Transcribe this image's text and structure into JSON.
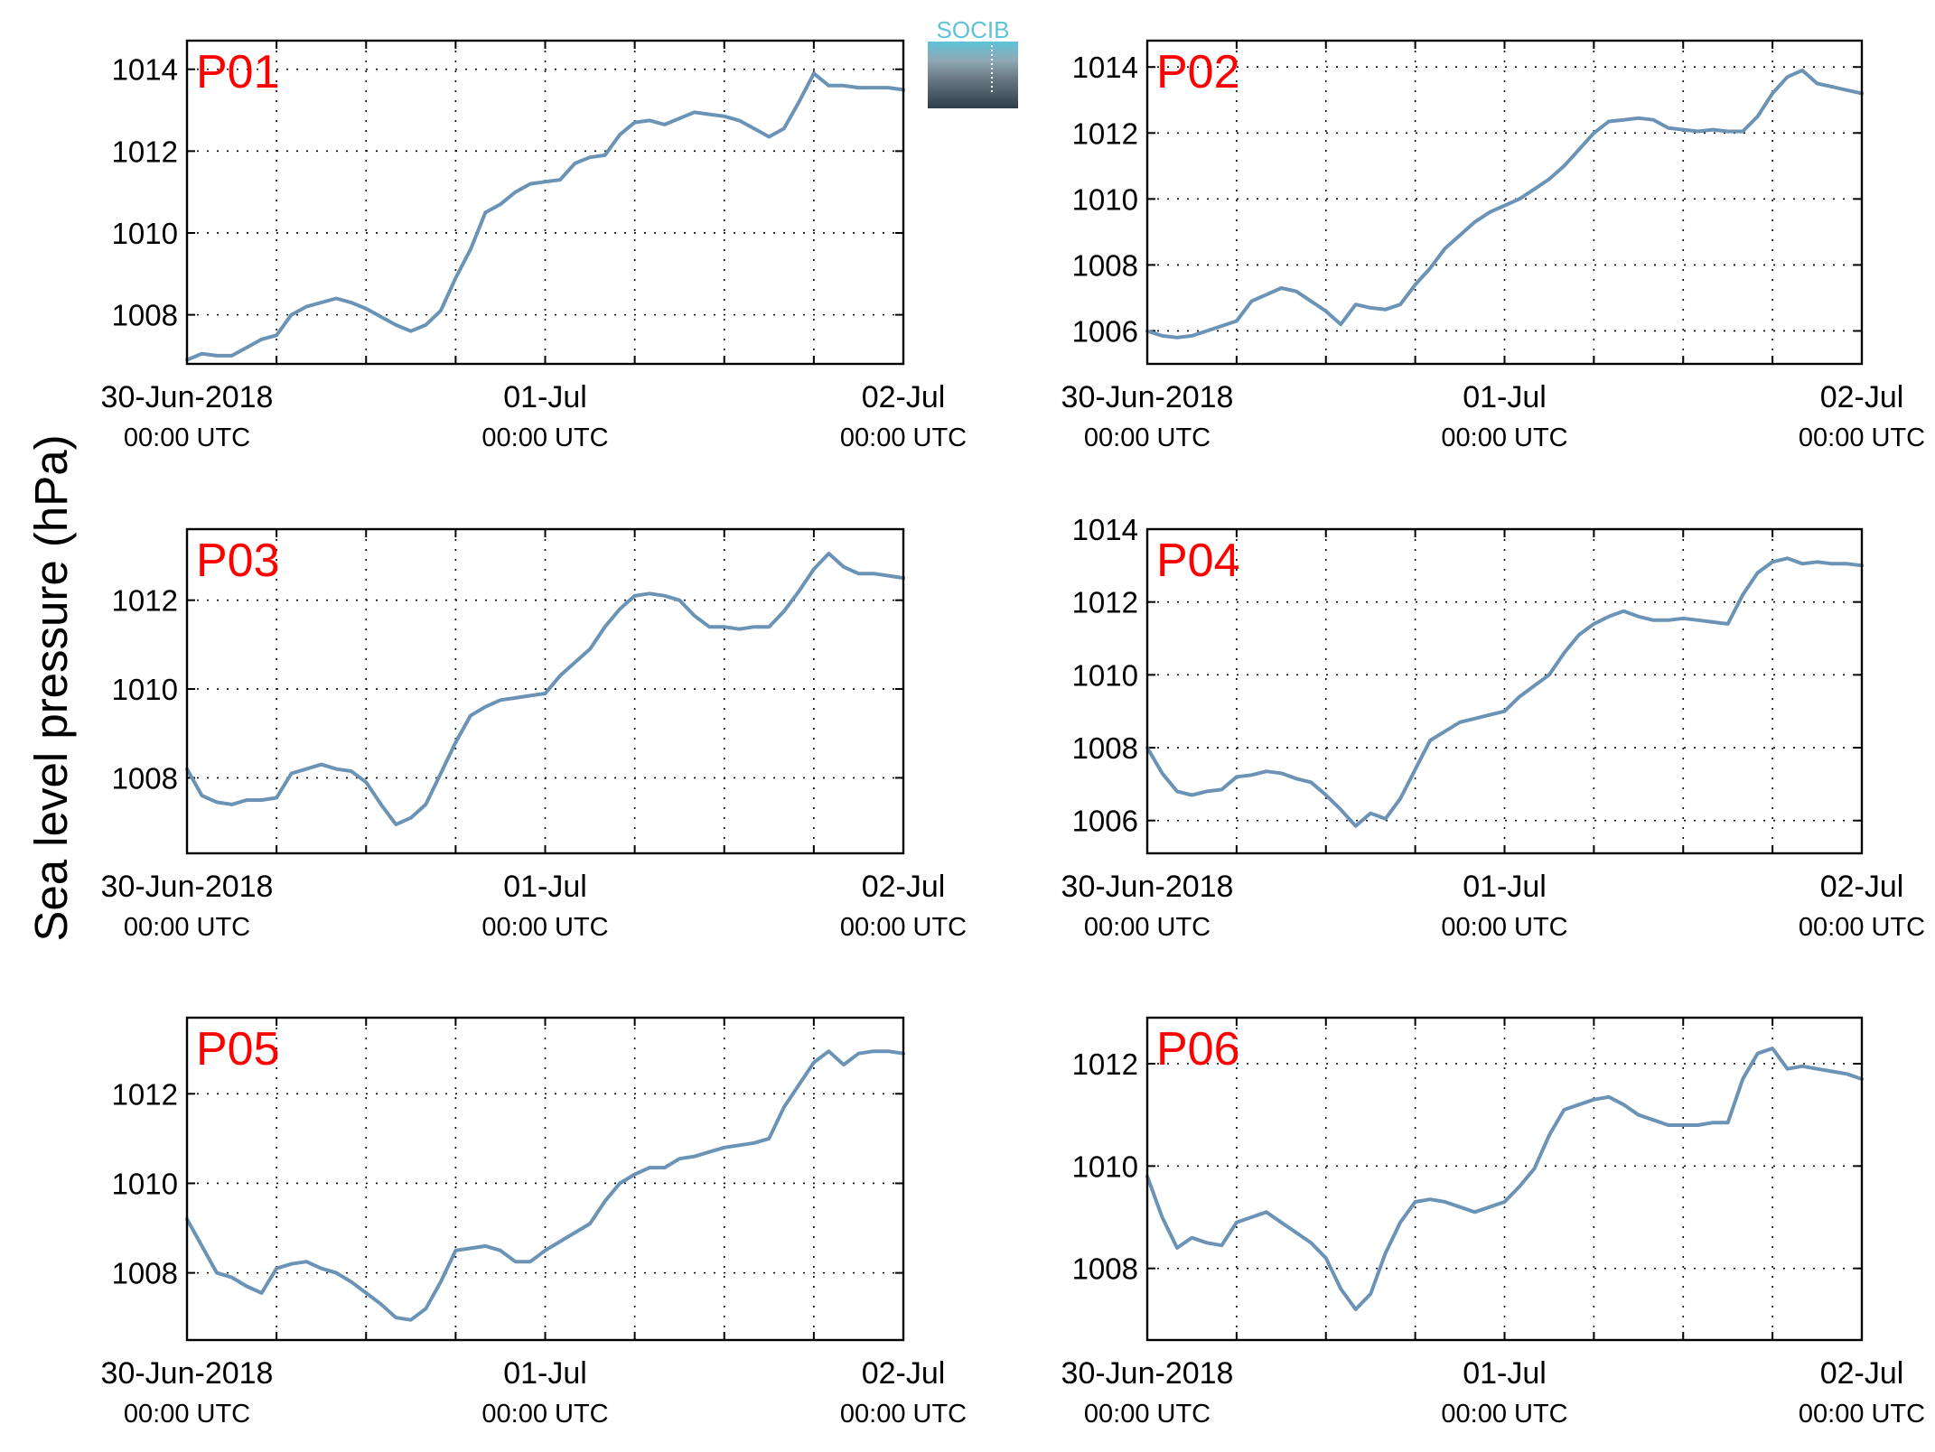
{
  "figure": {
    "ylabel": "Sea level pressure (hPa)",
    "logo_text": "SOCIB",
    "line_color": "#6b93b6",
    "label_color": "#ff0000"
  },
  "chart_data": [
    {
      "type": "line",
      "title": "P01",
      "x_ticks": [
        [
          "30-Jun-2018",
          "00:00 UTC"
        ],
        [
          "01-Jul",
          "00:00 UTC"
        ],
        [
          "02-Jul",
          "00:00 UTC"
        ]
      ],
      "x_range_hours": [
        0,
        48
      ],
      "x_grid_every_hours": 6,
      "ylim": [
        1006.8,
        1014.7
      ],
      "y_ticks": [
        1008,
        1010,
        1012,
        1014
      ],
      "hours": [
        0,
        1,
        2,
        3,
        4,
        5,
        6,
        7,
        8,
        9,
        10,
        11,
        12,
        13,
        14,
        15,
        16,
        17,
        18,
        19,
        20,
        21,
        22,
        23,
        24,
        25,
        26,
        27,
        28,
        29,
        30,
        31,
        32,
        33,
        34,
        35,
        36,
        37,
        38,
        39,
        40,
        41,
        42,
        43,
        44,
        45,
        46,
        47,
        48
      ],
      "values": [
        1006.9,
        1007.05,
        1007.0,
        1007.0,
        1007.2,
        1007.4,
        1007.5,
        1008.0,
        1008.2,
        1008.3,
        1008.4,
        1008.3,
        1008.15,
        1007.95,
        1007.75,
        1007.6,
        1007.75,
        1008.1,
        1008.9,
        1009.6,
        1010.5,
        1010.7,
        1011.0,
        1011.2,
        1011.25,
        1011.3,
        1011.7,
        1011.85,
        1011.9,
        1012.4,
        1012.7,
        1012.75,
        1012.65,
        1012.8,
        1012.95,
        1012.9,
        1012.85,
        1012.75,
        1012.55,
        1012.35,
        1012.55,
        1013.2,
        1013.9,
        1013.6,
        1013.6,
        1013.55,
        1013.55,
        1013.55,
        1013.5
      ]
    },
    {
      "type": "line",
      "title": "P02",
      "x_ticks": [
        [
          "30-Jun-2018",
          "00:00 UTC"
        ],
        [
          "01-Jul",
          "00:00 UTC"
        ],
        [
          "02-Jul",
          "00:00 UTC"
        ]
      ],
      "x_range_hours": [
        0,
        48
      ],
      "x_grid_every_hours": 6,
      "ylim": [
        1005.0,
        1014.8
      ],
      "y_ticks": [
        1006,
        1008,
        1010,
        1012,
        1014
      ],
      "hours": [
        0,
        1,
        2,
        3,
        4,
        5,
        6,
        7,
        8,
        9,
        10,
        11,
        12,
        13,
        14,
        15,
        16,
        17,
        18,
        19,
        20,
        21,
        22,
        23,
        24,
        25,
        26,
        27,
        28,
        29,
        30,
        31,
        32,
        33,
        34,
        35,
        36,
        37,
        38,
        39,
        40,
        41,
        42,
        43,
        44,
        45,
        46,
        47,
        48
      ],
      "values": [
        1006.0,
        1005.85,
        1005.8,
        1005.85,
        1006.0,
        1006.15,
        1006.3,
        1006.9,
        1007.1,
        1007.3,
        1007.2,
        1006.9,
        1006.6,
        1006.2,
        1006.8,
        1006.7,
        1006.65,
        1006.8,
        1007.4,
        1007.9,
        1008.5,
        1008.9,
        1009.3,
        1009.6,
        1009.8,
        1010.0,
        1010.3,
        1010.6,
        1011.0,
        1011.5,
        1012.0,
        1012.35,
        1012.4,
        1012.45,
        1012.4,
        1012.15,
        1012.1,
        1012.05,
        1012.1,
        1012.05,
        1012.05,
        1012.5,
        1013.2,
        1013.7,
        1013.9,
        1013.5,
        1013.4,
        1013.3,
        1013.2
      ]
    },
    {
      "type": "line",
      "title": "P03",
      "x_ticks": [
        [
          "30-Jun-2018",
          "00:00 UTC"
        ],
        [
          "01-Jul",
          "00:00 UTC"
        ],
        [
          "02-Jul",
          "00:00 UTC"
        ]
      ],
      "x_range_hours": [
        0,
        48
      ],
      "x_grid_every_hours": 6,
      "ylim": [
        1006.3,
        1013.6
      ],
      "y_ticks": [
        1008,
        1010,
        1012
      ],
      "hours": [
        0,
        1,
        2,
        3,
        4,
        5,
        6,
        7,
        8,
        9,
        10,
        11,
        12,
        13,
        14,
        15,
        16,
        17,
        18,
        19,
        20,
        21,
        22,
        23,
        24,
        25,
        26,
        27,
        28,
        29,
        30,
        31,
        32,
        33,
        34,
        35,
        36,
        37,
        38,
        39,
        40,
        41,
        42,
        43,
        44,
        45,
        46,
        47,
        48
      ],
      "values": [
        1008.2,
        1007.6,
        1007.45,
        1007.4,
        1007.5,
        1007.5,
        1007.55,
        1008.1,
        1008.2,
        1008.3,
        1008.2,
        1008.15,
        1007.9,
        1007.4,
        1006.95,
        1007.1,
        1007.4,
        1008.1,
        1008.8,
        1009.4,
        1009.6,
        1009.75,
        1009.8,
        1009.85,
        1009.9,
        1010.3,
        1010.6,
        1010.9,
        1011.4,
        1011.8,
        1012.1,
        1012.15,
        1012.1,
        1012.0,
        1011.65,
        1011.4,
        1011.4,
        1011.35,
        1011.4,
        1011.4,
        1011.75,
        1012.2,
        1012.7,
        1013.05,
        1012.75,
        1012.6,
        1012.6,
        1012.55,
        1012.5
      ]
    },
    {
      "type": "line",
      "title": "P04",
      "x_ticks": [
        [
          "30-Jun-2018",
          "00:00 UTC"
        ],
        [
          "01-Jul",
          "00:00 UTC"
        ],
        [
          "02-Jul",
          "00:00 UTC"
        ]
      ],
      "x_range_hours": [
        0,
        48
      ],
      "x_grid_every_hours": 6,
      "ylim": [
        1005.1,
        1014.0
      ],
      "y_ticks": [
        1006,
        1008,
        1010,
        1012,
        1014
      ],
      "hours": [
        0,
        1,
        2,
        3,
        4,
        5,
        6,
        7,
        8,
        9,
        10,
        11,
        12,
        13,
        14,
        15,
        16,
        17,
        18,
        19,
        20,
        21,
        22,
        23,
        24,
        25,
        26,
        27,
        28,
        29,
        30,
        31,
        32,
        33,
        34,
        35,
        36,
        37,
        38,
        39,
        40,
        41,
        42,
        43,
        44,
        45,
        46,
        47,
        48
      ],
      "values": [
        1008.0,
        1007.3,
        1006.8,
        1006.7,
        1006.8,
        1006.85,
        1007.2,
        1007.25,
        1007.35,
        1007.3,
        1007.15,
        1007.05,
        1006.7,
        1006.3,
        1005.85,
        1006.2,
        1006.05,
        1006.6,
        1007.4,
        1008.2,
        1008.45,
        1008.7,
        1008.8,
        1008.9,
        1009.0,
        1009.4,
        1009.7,
        1010.0,
        1010.6,
        1011.1,
        1011.4,
        1011.6,
        1011.75,
        1011.6,
        1011.5,
        1011.5,
        1011.55,
        1011.5,
        1011.45,
        1011.4,
        1012.2,
        1012.8,
        1013.1,
        1013.2,
        1013.05,
        1013.1,
        1013.05,
        1013.05,
        1013.0
      ]
    },
    {
      "type": "line",
      "title": "P05",
      "x_ticks": [
        [
          "30-Jun-2018",
          "00:00 UTC"
        ],
        [
          "01-Jul",
          "00:00 UTC"
        ],
        [
          "02-Jul",
          "00:00 UTC"
        ]
      ],
      "x_range_hours": [
        0,
        48
      ],
      "x_grid_every_hours": 6,
      "ylim": [
        1006.5,
        1013.7
      ],
      "y_ticks": [
        1008,
        1010,
        1012
      ],
      "hours": [
        0,
        1,
        2,
        3,
        4,
        5,
        6,
        7,
        8,
        9,
        10,
        11,
        12,
        13,
        14,
        15,
        16,
        17,
        18,
        19,
        20,
        21,
        22,
        23,
        24,
        25,
        26,
        27,
        28,
        29,
        30,
        31,
        32,
        33,
        34,
        35,
        36,
        37,
        38,
        39,
        40,
        41,
        42,
        43,
        44,
        45,
        46,
        47,
        48
      ],
      "values": [
        1009.2,
        1008.6,
        1008.0,
        1007.9,
        1007.7,
        1007.55,
        1008.1,
        1008.2,
        1008.25,
        1008.1,
        1008.0,
        1007.8,
        1007.55,
        1007.3,
        1007.0,
        1006.95,
        1007.2,
        1007.8,
        1008.5,
        1008.55,
        1008.6,
        1008.5,
        1008.25,
        1008.25,
        1008.5,
        1008.7,
        1008.9,
        1009.1,
        1009.6,
        1010.0,
        1010.2,
        1010.35,
        1010.35,
        1010.55,
        1010.6,
        1010.7,
        1010.8,
        1010.85,
        1010.9,
        1011.0,
        1011.7,
        1012.2,
        1012.7,
        1012.95,
        1012.65,
        1012.9,
        1012.95,
        1012.95,
        1012.9
      ]
    },
    {
      "type": "line",
      "title": "P06",
      "x_ticks": [
        [
          "30-Jun-2018",
          "00:00 UTC"
        ],
        [
          "01-Jul",
          "00:00 UTC"
        ],
        [
          "02-Jul",
          "00:00 UTC"
        ]
      ],
      "x_range_hours": [
        0,
        48
      ],
      "x_grid_every_hours": 6,
      "ylim": [
        1006.6,
        1012.9
      ],
      "y_ticks": [
        1008,
        1010,
        1012
      ],
      "hours": [
        0,
        1,
        2,
        3,
        4,
        5,
        6,
        7,
        8,
        9,
        10,
        11,
        12,
        13,
        14,
        15,
        16,
        17,
        18,
        19,
        20,
        21,
        22,
        23,
        24,
        25,
        26,
        27,
        28,
        29,
        30,
        31,
        32,
        33,
        34,
        35,
        36,
        37,
        38,
        39,
        40,
        41,
        42,
        43,
        44,
        45,
        46,
        47,
        48
      ],
      "values": [
        1009.8,
        1009.0,
        1008.4,
        1008.6,
        1008.5,
        1008.45,
        1008.9,
        1009.0,
        1009.1,
        1008.9,
        1008.7,
        1008.5,
        1008.2,
        1007.6,
        1007.2,
        1007.5,
        1008.3,
        1008.9,
        1009.3,
        1009.35,
        1009.3,
        1009.2,
        1009.1,
        1009.2,
        1009.3,
        1009.6,
        1009.95,
        1010.6,
        1011.1,
        1011.2,
        1011.3,
        1011.35,
        1011.2,
        1011.0,
        1010.9,
        1010.8,
        1010.8,
        1010.8,
        1010.85,
        1010.85,
        1011.7,
        1012.2,
        1012.3,
        1011.9,
        1011.95,
        1011.9,
        1011.85,
        1011.8,
        1011.7
      ]
    }
  ]
}
